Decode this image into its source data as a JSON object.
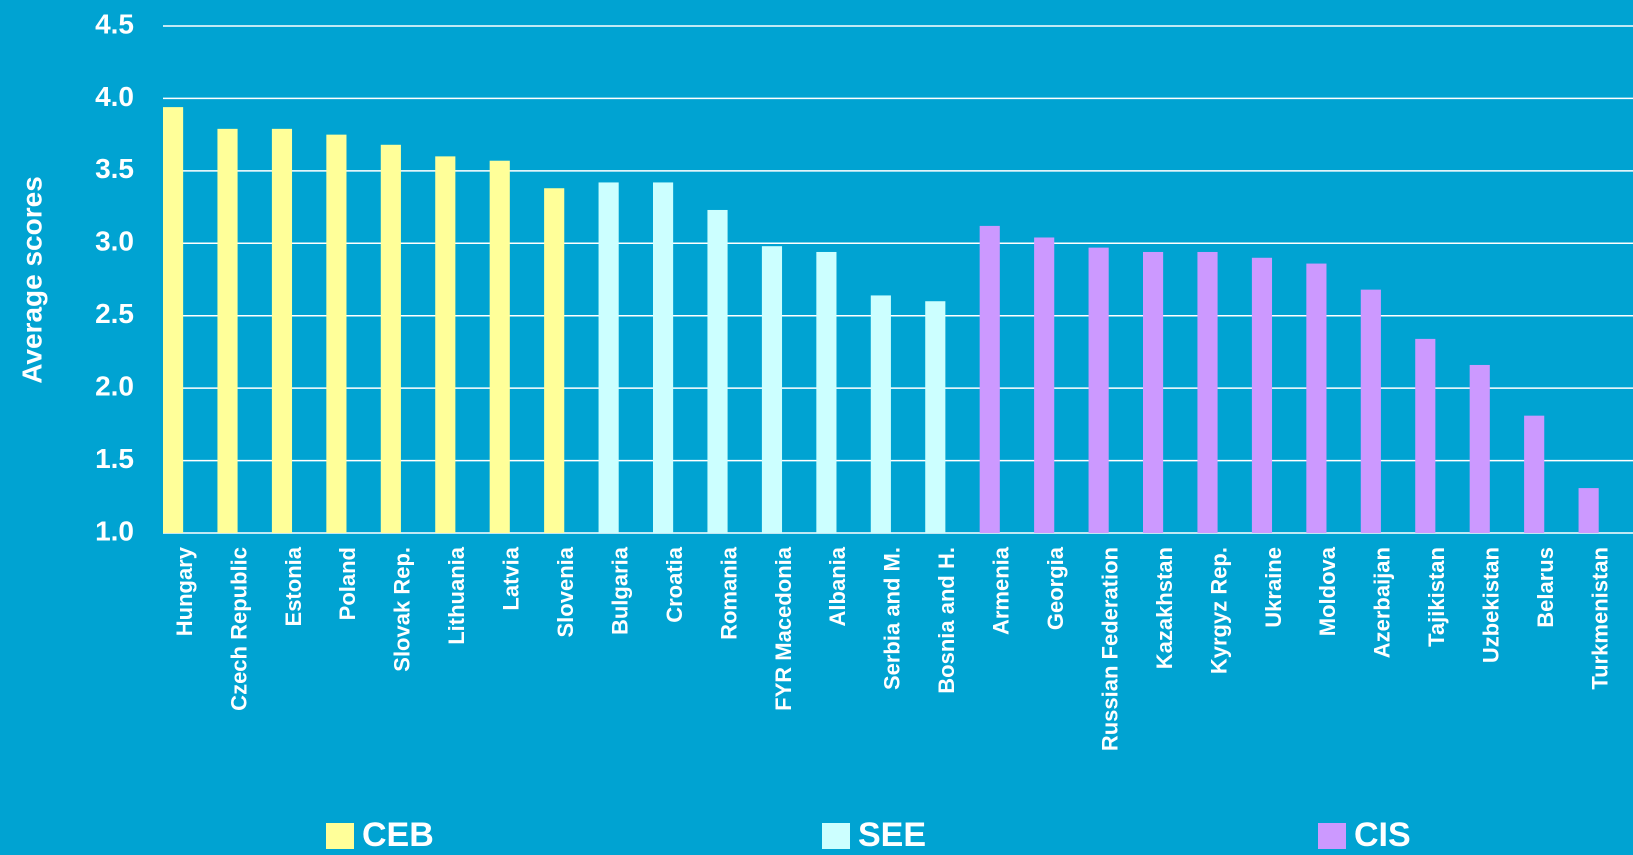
{
  "chart_data": {
    "type": "bar",
    "y_label": "Average scores",
    "categories": [
      "Hungary",
      "Czech Republic",
      "Estonia",
      "Poland",
      "Slovak Rep.",
      "Lithuania",
      "Latvia",
      "Slovenia",
      "Bulgaria",
      "Croatia",
      "Romania",
      "FYR Macedonia",
      "Albania",
      "Serbia and M.",
      "Bosnia and H.",
      "Armenia",
      "Georgia",
      "Russian Federation",
      "Kazakhstan",
      "Kyrgyz Rep.",
      "Ukraine",
      "Moldova",
      "Azerbaijan",
      "Tajikistan",
      "Uzbekistan",
      "Belarus",
      "Turkmenistan"
    ],
    "series": [
      {
        "name": "CEB",
        "color": "#ffff99",
        "values": [
          3.94,
          3.79,
          3.79,
          3.75,
          3.68,
          3.6,
          3.57,
          3.38,
          null,
          null,
          null,
          null,
          null,
          null,
          null,
          null,
          null,
          null,
          null,
          null,
          null,
          null,
          null,
          null,
          null,
          null,
          null
        ]
      },
      {
        "name": "SEE",
        "color": "#ccffff",
        "values": [
          null,
          null,
          null,
          null,
          null,
          null,
          null,
          null,
          3.42,
          3.42,
          3.23,
          2.98,
          2.94,
          2.64,
          2.6,
          null,
          null,
          null,
          null,
          null,
          null,
          null,
          null,
          null,
          null,
          null,
          null
        ]
      },
      {
        "name": "CIS",
        "color": "#cc99ff",
        "values": [
          null,
          null,
          null,
          null,
          null,
          null,
          null,
          null,
          null,
          null,
          null,
          null,
          null,
          null,
          null,
          3.12,
          3.04,
          2.97,
          2.94,
          2.94,
          2.9,
          2.86,
          2.68,
          2.34,
          2.16,
          1.81,
          1.31
        ]
      }
    ],
    "ylim": [
      1,
      4.5
    ],
    "yticks": [
      {
        "value": 1,
        "label": "1.0"
      },
      {
        "value": 1.5,
        "label": "1.5"
      },
      {
        "value": 2,
        "label": "2.0"
      },
      {
        "value": 2.5,
        "label": "2.5"
      },
      {
        "value": 3,
        "label": "3.0"
      },
      {
        "value": 3.5,
        "label": "3.5"
      },
      {
        "value": 4,
        "label": "4.0"
      },
      {
        "value": 4.5,
        "label": "4.5"
      }
    ],
    "grid": true
  }
}
